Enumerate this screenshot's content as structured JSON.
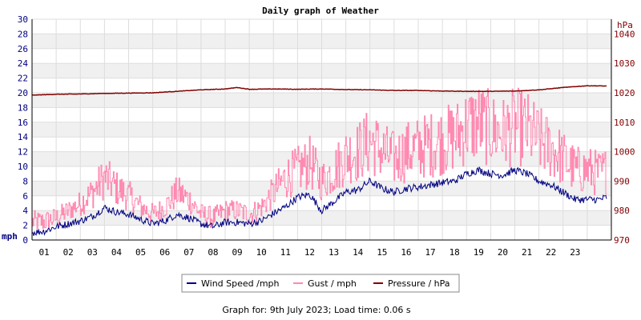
{
  "chart_data": {
    "type": "line",
    "title": "Daily graph of Weather",
    "footer": "Graph for: 9th July 2023; Load time: 0.06 s",
    "y_left": {
      "unit": "mph",
      "range": [
        0,
        30
      ],
      "ticks": [
        0,
        2,
        4,
        6,
        8,
        10,
        12,
        14,
        16,
        18,
        20,
        22,
        24,
        26,
        28,
        30
      ],
      "color": "#000080"
    },
    "y_right": {
      "unit": "hPa",
      "range": [
        970,
        1045
      ],
      "ticks": [
        970,
        980,
        990,
        1000,
        1010,
        1020,
        1030,
        1040
      ],
      "color": "#800000"
    },
    "x_range": [
      0,
      24
    ],
    "x_ticks": [
      "01",
      "02",
      "03",
      "04",
      "05",
      "06",
      "07",
      "08",
      "09",
      "10",
      "11",
      "12",
      "13",
      "14",
      "15",
      "16",
      "17",
      "18",
      "19",
      "20",
      "21",
      "22",
      "23"
    ],
    "grid": true,
    "legend_position": "bottom",
    "legend": [
      "Wind Speed /mph",
      "Gust / mph",
      "Pressure / hPa"
    ],
    "series": [
      {
        "name": "Wind Speed /mph",
        "axis": "left",
        "color": "#000080",
        "x": [
          0,
          0.5,
          1,
          1.5,
          2,
          2.5,
          3,
          3.5,
          4,
          4.5,
          5,
          5.5,
          6,
          6.5,
          7,
          7.5,
          8,
          8.5,
          9,
          9.5,
          10,
          10.5,
          11,
          11.5,
          12,
          12.5,
          13,
          13.5,
          14,
          14.5,
          15,
          15.5,
          16,
          16.5,
          17,
          17.5,
          18,
          18.5,
          19,
          19.5,
          20,
          20.5,
          21,
          21.5,
          22,
          22.5,
          23,
          23.5,
          23.8
        ],
        "y": [
          1,
          1.2,
          1.8,
          2.2,
          2.6,
          3.2,
          4.4,
          3.8,
          3.5,
          2.8,
          2.2,
          2.6,
          3.5,
          3.0,
          2.2,
          1.8,
          2.4,
          2.4,
          2.2,
          2.6,
          3.6,
          4.5,
          5.8,
          6.2,
          4.0,
          5.2,
          6.5,
          6.8,
          8.0,
          7.0,
          6.5,
          7.0,
          7.2,
          7.5,
          7.8,
          8.0,
          9.0,
          9.5,
          9.0,
          8.8,
          9.5,
          9.0,
          8.0,
          7.5,
          6.5,
          5.5,
          5.5,
          5.5,
          5.8
        ]
      },
      {
        "name": "Gust / mph",
        "axis": "left",
        "color": "#ff88b0",
        "x": [
          0,
          0.5,
          1,
          1.5,
          2,
          2.5,
          3,
          3.5,
          4,
          4.5,
          5,
          5.5,
          6,
          6.5,
          7,
          7.5,
          8,
          8.5,
          9,
          9.5,
          10,
          10.5,
          11,
          11.5,
          12,
          12.5,
          13,
          13.5,
          14,
          14.5,
          15,
          15.5,
          16,
          16.5,
          17,
          17.5,
          18,
          18.5,
          19,
          19.5,
          20,
          20.5,
          21,
          21.5,
          22,
          22.5,
          23,
          23.5,
          23.8
        ],
        "y": [
          2.5,
          2.5,
          3.0,
          4.0,
          5.0,
          6.5,
          8.5,
          7.0,
          6.0,
          4.5,
          3.5,
          4.5,
          6.5,
          5.5,
          3.5,
          3.0,
          4.0,
          4.0,
          3.5,
          4.5,
          6.5,
          8.5,
          9.5,
          10.5,
          8.0,
          9.5,
          11.5,
          12.0,
          13.5,
          12.0,
          11.0,
          12.0,
          12.5,
          13.0,
          13.5,
          14.0,
          15.5,
          16.0,
          15.0,
          14.5,
          15.5,
          15.0,
          13.5,
          12.5,
          11.0,
          9.5,
          9.5,
          9.0,
          9.5
        ]
      },
      {
        "name": "Pressure / hPa",
        "axis": "right",
        "color": "#800000",
        "x": [
          0,
          1,
          2,
          3,
          4,
          5,
          6,
          7,
          8,
          8.5,
          9,
          10,
          11,
          12,
          13,
          14,
          15,
          16,
          17,
          18,
          19,
          20,
          21,
          22,
          23,
          23.8
        ],
        "y": [
          1019.2,
          1019.5,
          1019.6,
          1019.8,
          1019.9,
          1020.0,
          1020.5,
          1021.0,
          1021.3,
          1021.8,
          1021.2,
          1021.3,
          1021.2,
          1021.3,
          1021.1,
          1021.0,
          1020.8,
          1020.8,
          1020.6,
          1020.5,
          1020.5,
          1020.6,
          1021.0,
          1021.8,
          1022.4,
          1022.3
        ]
      }
    ]
  }
}
